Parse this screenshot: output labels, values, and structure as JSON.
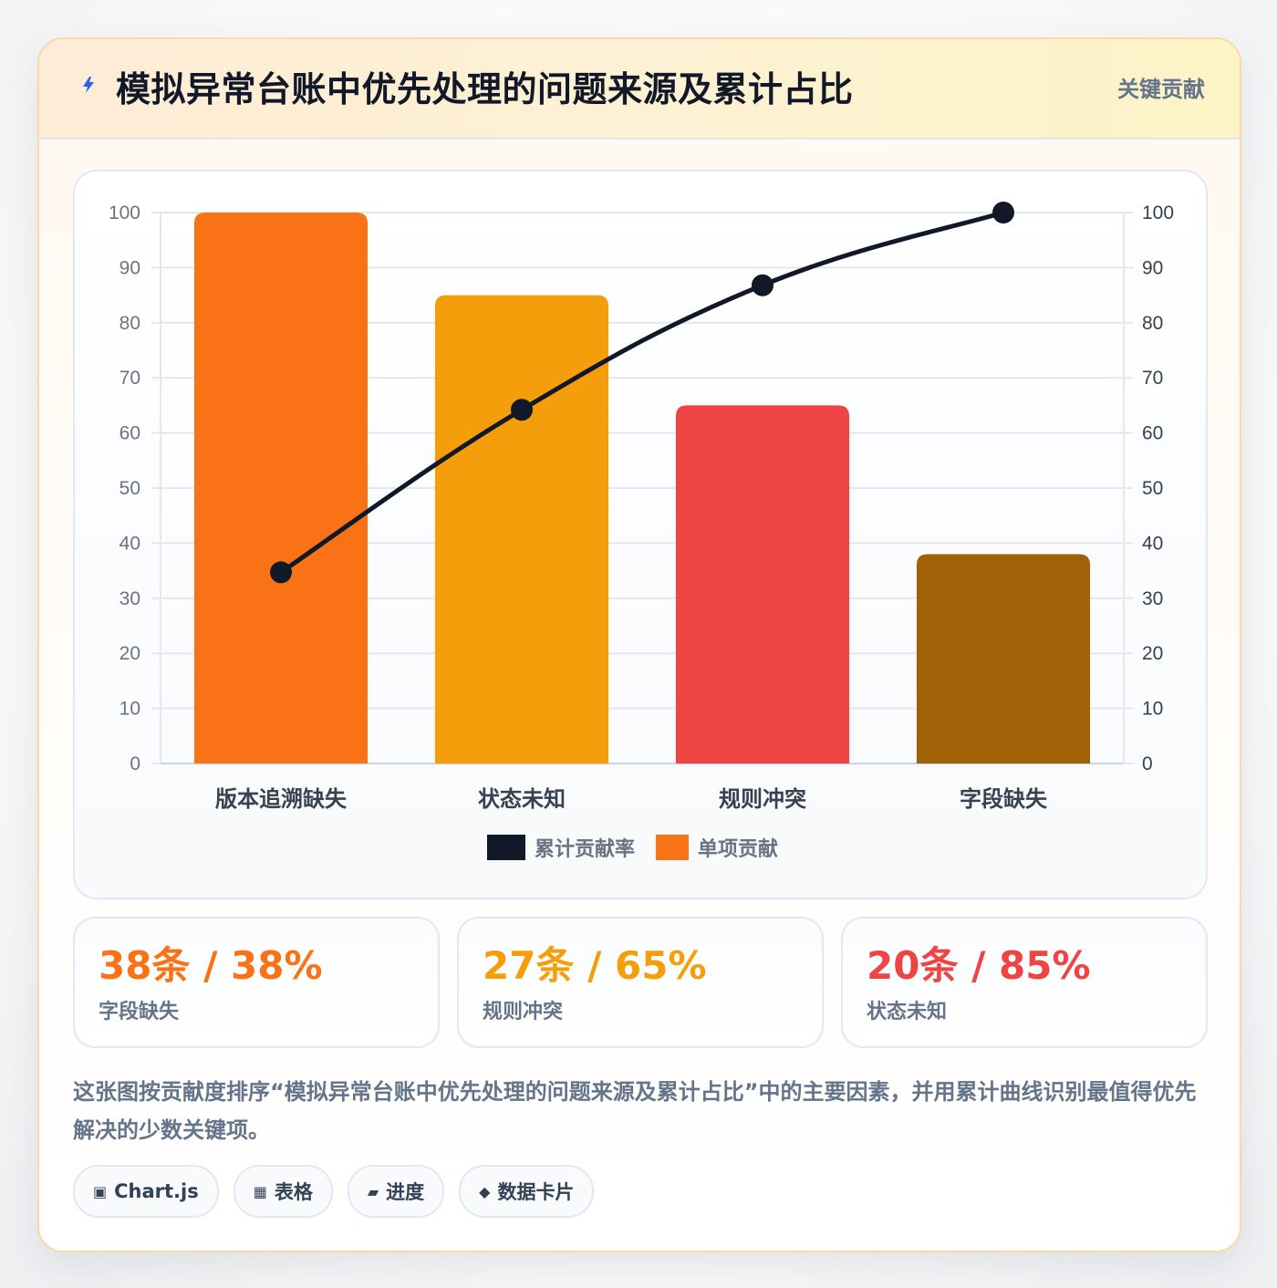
{
  "header": {
    "icon": "lightning-icon",
    "title": "模拟异常台账中优先处理的问题来源及累计占比",
    "badge": "关键贡献"
  },
  "chart_data": {
    "type": "bar",
    "categories": [
      "版本追溯缺失",
      "状态未知",
      "规则冲突",
      "字段缺失"
    ],
    "series": [
      {
        "name": "单项贡献",
        "type": "bar",
        "axis": "left",
        "values": [
          100,
          85,
          65,
          38
        ]
      },
      {
        "name": "累计贡献率",
        "type": "line",
        "axis": "right",
        "values": [
          34.7,
          64.2,
          86.8,
          100
        ]
      }
    ],
    "bar_colors": [
      "#f97316",
      "#f59e0b",
      "#ef4444",
      "#a16207"
    ],
    "line_color": "#111827",
    "ylim": [
      0,
      100
    ],
    "y2lim": [
      0,
      100
    ],
    "yticks": [
      "0",
      "10",
      "20",
      "30",
      "40",
      "50",
      "60",
      "70",
      "80",
      "90",
      "100"
    ],
    "y2ticks": [
      "0",
      "10",
      "20",
      "30",
      "40",
      "50",
      "60",
      "70",
      "80",
      "90",
      "100"
    ],
    "legend": [
      {
        "label": "累计贡献率",
        "color": "#111827"
      },
      {
        "label": "单项贡献",
        "color": "#f97316"
      }
    ],
    "legend_position": "bottom",
    "grid": true
  },
  "stats": [
    {
      "value": "38条 / 38%",
      "label": "字段缺失",
      "color": "#f97316"
    },
    {
      "value": "27条 / 65%",
      "label": "规则冲突",
      "color": "#f59e0b"
    },
    {
      "value": "20条 / 85%",
      "label": "状态未知",
      "color": "#ef4444"
    }
  ],
  "description": "这张图按贡献度排序“模拟异常台账中优先处理的问题来源及累计占比”中的主要因素，并用累计曲线识别最值得优先解决的少数关键项。",
  "tags": [
    {
      "icon": "chart-icon",
      "glyph": "▣",
      "label": "Chart.js"
    },
    {
      "icon": "table-icon",
      "glyph": "▦",
      "label": "表格"
    },
    {
      "icon": "progress-icon",
      "glyph": "▰",
      "label": "进度"
    },
    {
      "icon": "diamond-icon",
      "glyph": "◆",
      "label": "数据卡片"
    }
  ]
}
